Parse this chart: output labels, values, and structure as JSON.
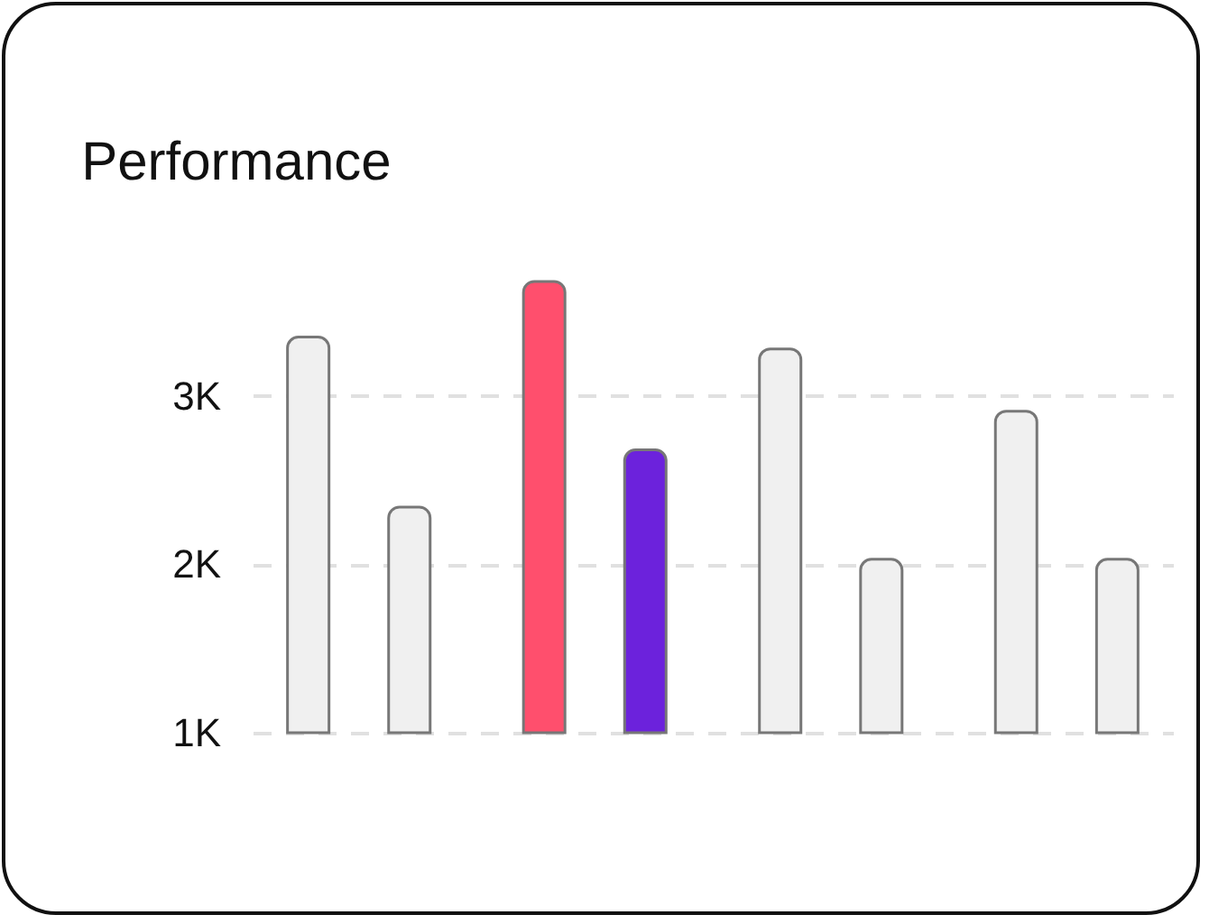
{
  "chart_data": {
    "type": "bar",
    "title": "Performance",
    "categories": [
      null,
      null,
      null,
      null
    ],
    "series": [
      {
        "values": [
          3350,
          3680,
          3280,
          2910
        ],
        "colors": [
          "#f0f0f0",
          "#ff4f6d",
          "#f0f0f0",
          "#f0f0f0"
        ]
      },
      {
        "values": [
          2340,
          2680,
          2030,
          2030
        ],
        "colors": [
          "#f0f0f0",
          "#6c22dc",
          "#f0f0f0",
          "#f0f0f0"
        ]
      }
    ],
    "ylim": [
      1000,
      3680
    ],
    "yticks": [
      {
        "value": 1000,
        "label": "1K"
      },
      {
        "value": 2000,
        "label": "2K"
      },
      {
        "value": 3000,
        "label": "3K"
      }
    ],
    "grid": "y",
    "tick_labels": "y"
  }
}
